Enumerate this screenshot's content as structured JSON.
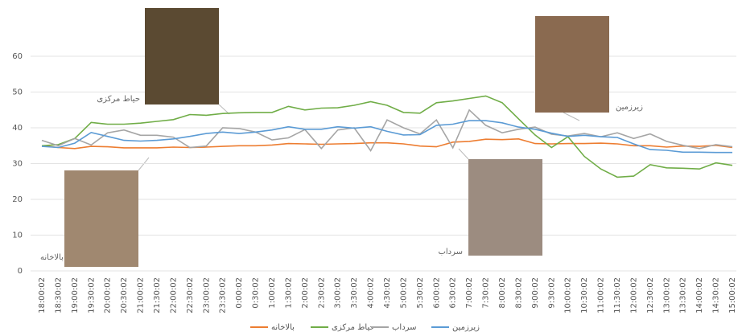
{
  "chart_data": {
    "type": "line",
    "categories": [
      "18:00:02",
      "18:30:02",
      "19:00:02",
      "19:30:02",
      "20:00:02",
      "20:30:02",
      "21:00:02",
      "21:30:02",
      "22:00:02",
      "22:30:02",
      "23:00:02",
      "23:30:02",
      "0:00:02",
      "0:30:02",
      "1:00:02",
      "1:30:02",
      "2:00:02",
      "2:30:02",
      "3:00:02",
      "3:30:02",
      "4:00:02",
      "4:30:02",
      "5:00:02",
      "5:30:02",
      "6:00:02",
      "6:30:02",
      "7:00:02",
      "7:30:02",
      "8:00:02",
      "8:30:02",
      "9:00:02",
      "9:30:02",
      "10:00:02",
      "10:30:02",
      "11:00:02",
      "11:30:02",
      "12:00:02",
      "12:30:02",
      "13:00:02",
      "13:30:02",
      "14:00:02",
      "14:30:02",
      "15:00:02"
    ],
    "series": [
      {
        "name": "بالاخانه",
        "color": "#ed7d31",
        "values": [
          35,
          34.5,
          34.2,
          34.8,
          34.7,
          34.4,
          34.4,
          34.4,
          34.6,
          34.5,
          34.6,
          34.8,
          35,
          35,
          35.2,
          35.6,
          35.5,
          35.4,
          35.5,
          35.6,
          35.8,
          35.8,
          35.5,
          34.9,
          34.7,
          36,
          36.2,
          36.8,
          36.7,
          36.9,
          35.6,
          35.5,
          35.6,
          35.6,
          35.7,
          35.5,
          35,
          35,
          34.6,
          34.9,
          34.8,
          35.1,
          34.5
        ]
      },
      {
        "name": "حیاط مرکزی",
        "color": "#70ad47",
        "values": [
          35,
          35.3,
          37,
          41.5,
          41,
          41,
          41.3,
          41.8,
          42.3,
          43.7,
          43.5,
          44,
          44.2,
          44.3,
          44.3,
          46,
          45,
          45.5,
          45.6,
          46.3,
          47.3,
          46.3,
          44.3,
          44.1,
          47,
          47.5,
          48.2,
          48.9,
          47,
          42.5,
          38,
          34.5,
          37.5,
          32,
          28.5,
          26.2,
          26.5,
          29.7,
          28.8,
          28.7,
          28.5,
          30.2,
          29.5
        ]
      },
      {
        "name": "سرداب",
        "color": "#a5a5a5",
        "values": [
          36.5,
          35,
          37,
          35.2,
          38.6,
          39.4,
          37.9,
          37.9,
          37.4,
          34.5,
          34.9,
          40,
          39.8,
          38.8,
          36.6,
          37.2,
          39.5,
          34.2,
          39.4,
          40,
          33.6,
          42.2,
          40,
          38.3,
          42.2,
          34.4,
          45,
          40.7,
          38.6,
          39.6,
          40.2,
          38.2,
          37.7,
          38.4,
          37.5,
          38.6,
          37,
          38.3,
          36.2,
          35.1,
          34.2,
          35.3,
          34.7
        ]
      },
      {
        "name": "زیرزمین",
        "color": "#5b9bd5",
        "values": [
          34.8,
          34.5,
          35.7,
          38.7,
          37.6,
          36.5,
          36.3,
          36.5,
          36.9,
          37.6,
          38.4,
          38.8,
          38.4,
          38.8,
          39.4,
          40.3,
          39.6,
          39.6,
          40.3,
          39.9,
          40.3,
          39,
          38,
          38.1,
          40.7,
          41,
          42,
          42,
          41.4,
          40.2,
          39.6,
          38.5,
          37.6,
          37.9,
          37.5,
          37.3,
          35.5,
          33.9,
          33.7,
          33.2,
          33.2,
          33.1,
          33.1
        ]
      }
    ],
    "ylim": [
      0,
      60
    ],
    "yticks": [
      0,
      10,
      20,
      30,
      40,
      50,
      60
    ],
    "grid": true,
    "legend": "bottom",
    "annotations": [
      "حیاط مرکزی",
      "زیرزمین",
      "بالاخانه",
      "سرداب"
    ]
  }
}
